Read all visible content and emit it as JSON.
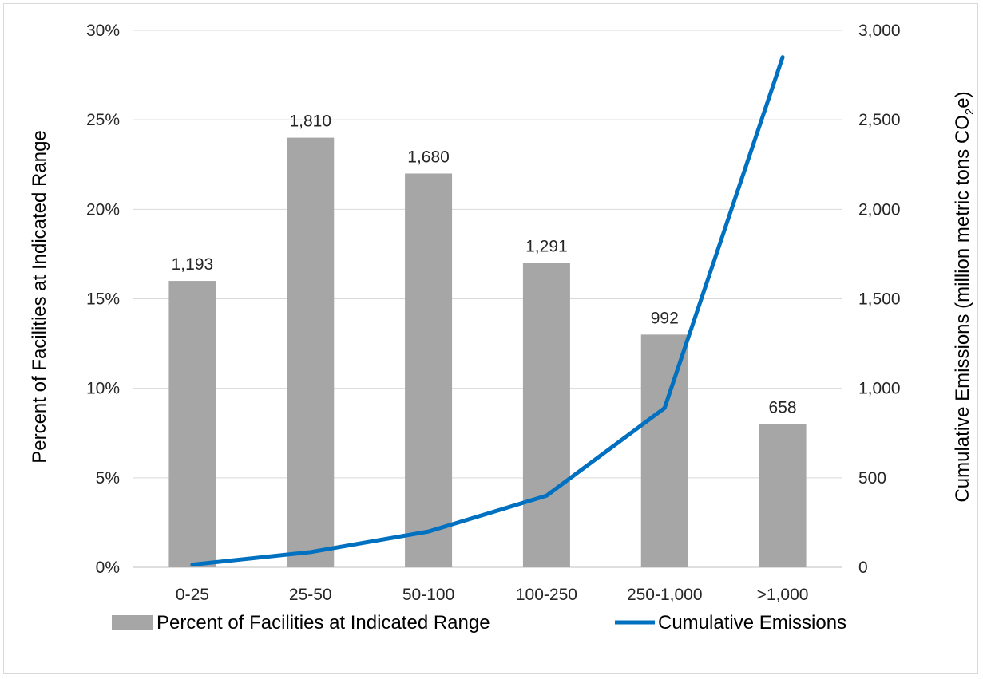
{
  "chart_data": {
    "type": "bar",
    "categories": [
      "0-25",
      "25-50",
      "50-100",
      "100-250",
      "250-1,000",
      ">1,000"
    ],
    "series": [
      {
        "name": "Percent of Facilities at Indicated Range",
        "type": "bar",
        "axis": "left",
        "values": [
          16,
          24,
          22,
          17,
          13,
          8
        ],
        "data_labels": [
          "1,193",
          "1,810",
          "1,680",
          "1,291",
          "992",
          "658"
        ],
        "color": "#a6a6a6"
      },
      {
        "name": "Cumulative Emissions",
        "type": "line",
        "axis": "right",
        "values": [
          15,
          85,
          200,
          400,
          890,
          2850
        ],
        "color": "#0070c0"
      }
    ],
    "y_left": {
      "label": "Percent of Facilities at Indicated Range",
      "min": 0,
      "max": 30,
      "step": 5,
      "ticks": [
        "0%",
        "5%",
        "10%",
        "15%",
        "20%",
        "25%",
        "30%"
      ]
    },
    "y_right": {
      "label_main": "Cumulative Emissions (million metric tons CO",
      "label_sub": "2",
      "label_end": "e)",
      "min": 0,
      "max": 3000,
      "step": 500,
      "ticks": [
        "0",
        "500",
        "1,000",
        "1,500",
        "2,000",
        "2,500",
        "3,000"
      ]
    },
    "grid": true,
    "legend": "bottom"
  }
}
